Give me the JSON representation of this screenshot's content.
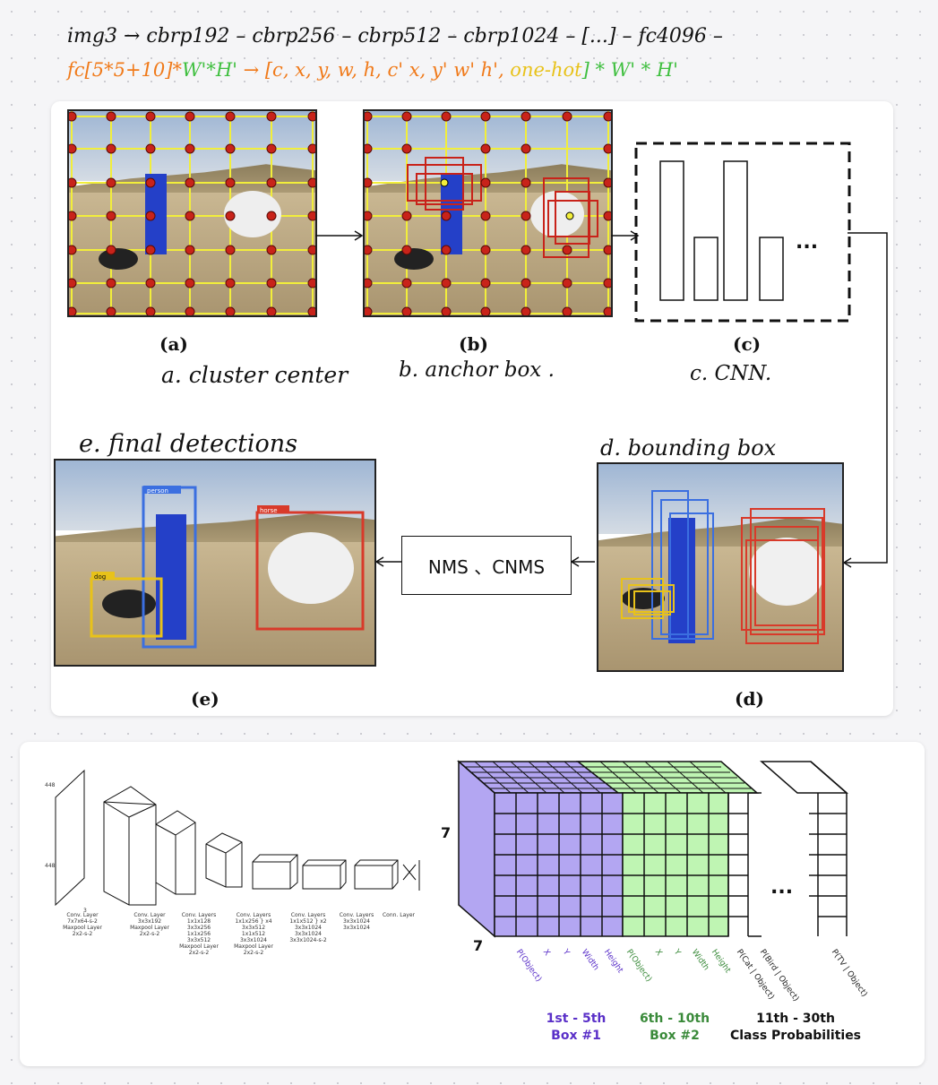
{
  "header": {
    "line1": "img3 → cbrp192 – cbrp256 – cbrp512 – cbrp1024 – [...] – fc4096 –",
    "line2_part1": "fc[5*5+10]*",
    "line2_part2": "W'*H'",
    "line2_arrow": " → [c, x, y, w, h, c' x, y' w' h', ",
    "line2_part3": "one-hot",
    "line2_part4": "] * W' * H'"
  },
  "top_panel": {
    "cap_a": "(a)",
    "cap_b": "(b)",
    "cap_c": "(c)",
    "cap_d": "(d)",
    "cap_e": "(e)",
    "note_a": "a. cluster center",
    "note_b": "b. anchor box .",
    "note_c": "c. CNN.",
    "note_d": "d. bounding box",
    "note_e": "e. final detections",
    "nms_label": "NMS 、CNMS",
    "cnn_ellipsis": "...",
    "det_person": "person",
    "det_horse": "horse",
    "det_dog": "dog"
  },
  "bottom_panel": {
    "dim_448a": "448",
    "dim_448b": "448",
    "dim_3": "3",
    "layers": [
      {
        "text": "Conv. Layer\n7x7x64-s-2\nMaxpool Layer\n2x2-s-2"
      },
      {
        "text": "Conv. Layer\n3x3x192\nMaxpool Layer\n2x2-s-2"
      },
      {
        "text": "Conv. Layers\n1x1x128\n3x3x256\n1x1x256\n3x3x512\nMaxpool Layer\n2x2-s-2"
      },
      {
        "text": "Conv. Layers\n1x1x256 } x4\n3x3x512\n1x1x512\n3x3x1024\nMaxpool Layer\n2x2-s-2"
      },
      {
        "text": "Conv. Layers\n1x1x512 } x2\n3x3x1024\n3x3x1024\n3x3x1024-s-2"
      },
      {
        "text": "Conv. Layers\n3x3x1024\n3x3x1024"
      },
      {
        "text": "Conn. Layer"
      }
    ],
    "cube_7_left": "7",
    "cube_7_bottom": "7",
    "ellipsis": "...",
    "axis_labels": [
      "P(Object)",
      "X",
      "Y",
      "Width",
      "Height",
      "P(Object)",
      "X",
      "Y",
      "Width",
      "Height",
      "P(Cat | Object)",
      "P(Bird | Object)",
      "P(TV | Object)"
    ],
    "legend1_line1": "1st - 5th",
    "legend1_line2": "Box #1",
    "legend2_line1": "6th - 10th",
    "legend2_line2": "Box #2",
    "legend3_line1": "11th - 30th",
    "legend3_line2": "Class Probabilities",
    "colors": {
      "box1": "#b3a6f2",
      "box2": "#bff5b3",
      "purple_text": "#5a30c8",
      "green_text": "#3a8a3a",
      "det_red": "#d83a2a",
      "det_blue": "#3b6fe0",
      "det_yellow": "#e8c21a"
    }
  }
}
